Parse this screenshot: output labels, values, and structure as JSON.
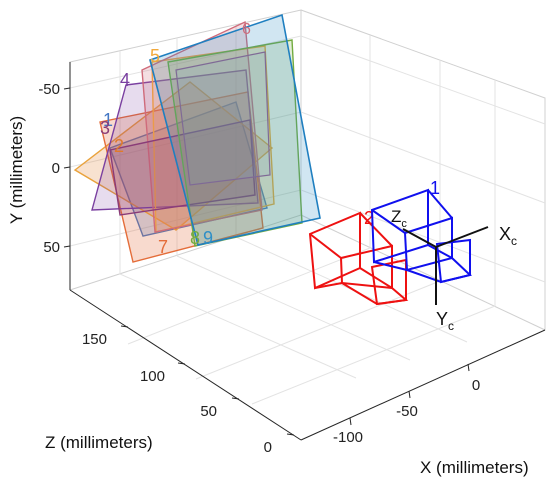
{
  "chart_data": {
    "type": "extrinsics-3d",
    "title": "",
    "xlabel": "X (millimeters)",
    "ylabel": "Y (millimeters)",
    "zlabel": "Z (millimeters)",
    "x_ticks": [
      "-100",
      "-50",
      "0"
    ],
    "y_ticks": [
      "-50",
      "0",
      "50"
    ],
    "z_ticks": [
      "0",
      "50",
      "100",
      "150"
    ],
    "grid": true,
    "patterns": [
      {
        "id": "1",
        "color": "#4477c4"
      },
      {
        "id": "2",
        "color": "#e07a2a"
      },
      {
        "id": "3",
        "color": "#8a3c78"
      },
      {
        "id": "4",
        "color": "#7a3fa0"
      },
      {
        "id": "5",
        "color": "#f2a93b"
      },
      {
        "id": "6",
        "color": "#cf6b7b"
      },
      {
        "id": "7",
        "color": "#e46d3a"
      },
      {
        "id": "8",
        "color": "#72ab3f"
      },
      {
        "id": "9",
        "color": "#2f8fc6"
      }
    ],
    "cameras": [
      {
        "id": "1",
        "color": "#1010ee"
      },
      {
        "id": "2",
        "color": "#ee1111"
      }
    ],
    "camera_axes": {
      "x": "X",
      "y": "Y",
      "z": "Z",
      "subscript": "c"
    }
  }
}
